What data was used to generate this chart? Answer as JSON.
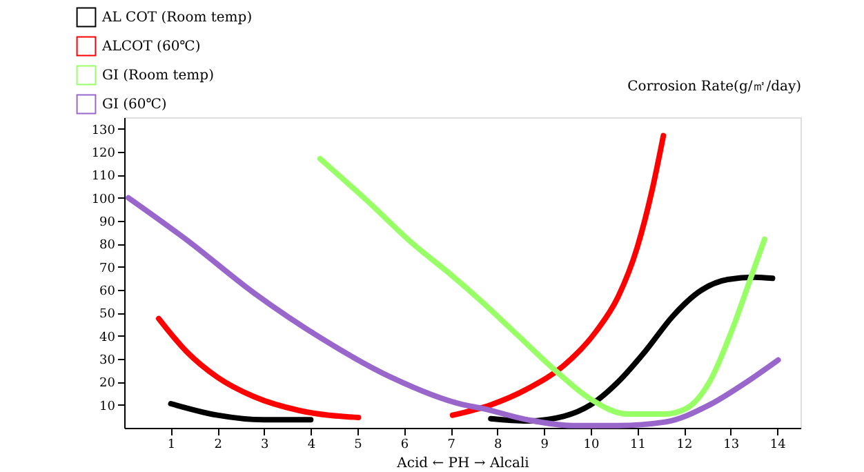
{
  "chart_data": {
    "type": "line",
    "xlabel": "Acid ← PH → Alcali",
    "ylabel": "Corrosion Rate(g/㎡/day)",
    "xlim": [
      0,
      14.5
    ],
    "ylim": [
      0,
      135
    ],
    "xticks": [
      1,
      2,
      3,
      4,
      5,
      6,
      7,
      8,
      9,
      10,
      11,
      12,
      13,
      14
    ],
    "yticks": [
      10,
      20,
      30,
      40,
      50,
      60,
      70,
      80,
      90,
      100,
      110,
      120,
      130
    ],
    "legend": "top left",
    "grid": false,
    "marker": "none",
    "line_style": "solid",
    "series": [
      {
        "name": "AL COT (Room temp)",
        "color": "#000000",
        "x": [
          1,
          2,
          3,
          4,
          6,
          7.86,
          8.65,
          9.42,
          10.0,
          10.59,
          11.18,
          11.76,
          12.35,
          12.94,
          13.52,
          13.9
        ],
        "values": [
          10.5,
          5.5,
          3.5,
          3.5,
          null,
          4,
          3,
          5,
          10,
          20,
          33.5,
          48.5,
          59.5,
          64.5,
          65.5,
          65
        ]
      },
      {
        "name": "ALCOT (60℃)",
        "color": "#ff0000",
        "x": [
          0.74,
          1.32,
          2.0,
          2.79,
          3.76,
          5.02,
          6,
          7.04,
          7.86,
          8.65,
          9.42,
          10.12,
          10.59,
          11.0,
          11.32,
          11.56
        ],
        "values": [
          47.5,
          33.5,
          22,
          13.5,
          7.5,
          4.5,
          null,
          5.5,
          10,
          17,
          27,
          42,
          57,
          78.5,
          103.5,
          127
        ]
      },
      {
        "name": "GI (Room temp)",
        "color": "#99ff66",
        "x": [
          4.2,
          5.22,
          6.19,
          6.98,
          7.66,
          8.45,
          9.24,
          10.0,
          10.79,
          11.59,
          12.06,
          12.55,
          13.05,
          13.43,
          13.73
        ],
        "values": [
          117,
          98.5,
          80,
          67,
          55,
          40,
          25,
          12.5,
          6,
          6,
          8.5,
          20,
          43.5,
          65,
          82
        ]
      },
      {
        "name": "GI (60℃)",
        "color": "#9966cc",
        "x": [
          0.09,
          1.32,
          2.79,
          4.26,
          5.72,
          7.28,
          7.66,
          8.65,
          9.62,
          10.59,
          11.59,
          12.55,
          13.35,
          14.02
        ],
        "values": [
          100,
          82,
          58.5,
          38.5,
          22,
          10,
          8.5,
          3.5,
          1,
          1,
          2.5,
          10,
          20,
          29.5
        ]
      }
    ]
  }
}
